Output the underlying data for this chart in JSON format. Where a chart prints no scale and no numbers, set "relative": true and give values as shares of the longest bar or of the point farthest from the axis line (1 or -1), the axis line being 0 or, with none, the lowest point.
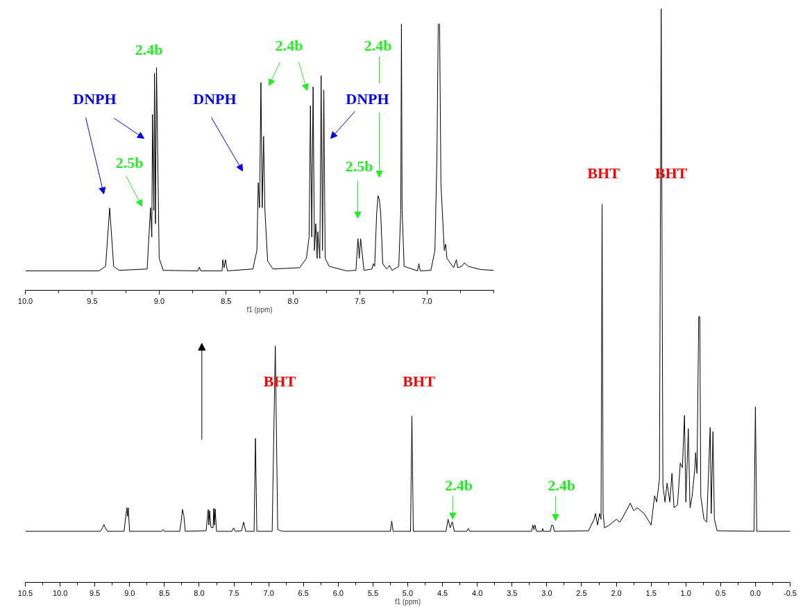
{
  "chart_data": [
    {
      "type": "line",
      "relative": true,
      "tick_labels": "x",
      "xlabel": "f1 (ppm)",
      "xlim": [
        10.0,
        6.5
      ],
      "xticks": [
        {
          "value": 10.0,
          "label": "10.0"
        },
        {
          "value": 9.75,
          "label": null
        },
        9.5,
        {
          "value": 9.25,
          "label": null
        },
        {
          "value": 9.0,
          "label": "9.0"
        },
        {
          "value": 8.75,
          "label": null
        },
        8.5,
        {
          "value": 8.25,
          "label": null
        },
        {
          "value": 8.0,
          "label": "8.0"
        },
        {
          "value": 7.75,
          "label": null
        },
        7.5,
        {
          "value": 7.25,
          "label": null
        },
        {
          "value": 7.0,
          "label": "7.0"
        },
        {
          "value": 6.75,
          "label": null
        },
        {
          "value": 6.5,
          "label": null
        }
      ],
      "series": [
        {
          "color": "#000000",
          "x": [
            10.0,
            9.45,
            9.4,
            9.37,
            9.34,
            9.3,
            9.09,
            9.065,
            9.055,
            9.05,
            9.04,
            9.035,
            9.028,
            9.02,
            9.0,
            8.97,
            8.71,
            8.7,
            8.69,
            8.53,
            8.525,
            8.515,
            8.505,
            8.49,
            8.3,
            8.27,
            8.26,
            8.25,
            8.24,
            8.23,
            8.22,
            8.21,
            8.19,
            8.15,
            7.95,
            7.9,
            7.88,
            7.87,
            7.86,
            7.85,
            7.84,
            7.83,
            7.82,
            7.815,
            7.8,
            7.79,
            7.78,
            7.77,
            7.76,
            7.73,
            7.6,
            7.53,
            7.515,
            7.505,
            7.495,
            7.47,
            7.41,
            7.4,
            7.39,
            7.375,
            7.365,
            7.355,
            7.345,
            7.33,
            7.3,
            7.28,
            7.26,
            7.21,
            7.195,
            7.19,
            7.185,
            7.17,
            7.07,
            7.06,
            7.05,
            6.97,
            6.94,
            6.925,
            6.915,
            6.905,
            6.895,
            6.87,
            6.86,
            6.85,
            6.8,
            6.78,
            6.77,
            6.74,
            6.72,
            6.69,
            6.6,
            6.5
          ],
          "values": [
            0.073,
            0.073,
            0.09,
            0.309,
            0.09,
            0.075,
            0.08,
            0.31,
            0.2,
            0.66,
            0.3,
            0.815,
            0.25,
            0.836,
            0.12,
            0.075,
            0.073,
            0.087,
            0.073,
            0.073,
            0.115,
            0.085,
            0.115,
            0.073,
            0.08,
            0.15,
            0.404,
            0.31,
            0.78,
            0.31,
            0.578,
            0.3,
            0.11,
            0.08,
            0.085,
            0.12,
            0.2,
            0.693,
            0.2,
            0.764,
            0.15,
            0.25,
            0.12,
            0.22,
            0.12,
            0.806,
            0.15,
            0.752,
            0.12,
            0.09,
            0.073,
            0.075,
            0.194,
            0.12,
            0.194,
            0.075,
            0.08,
            0.1,
            0.09,
            0.29,
            0.355,
            0.34,
            0.29,
            0.1,
            0.08,
            0.093,
            0.075,
            0.09,
            0.3,
            1.0,
            0.3,
            0.09,
            0.073,
            0.1,
            0.073,
            0.075,
            0.15,
            0.5,
            1.0,
            1.0,
            0.4,
            0.15,
            0.173,
            0.12,
            0.085,
            0.115,
            0.085,
            0.09,
            0.103,
            0.09,
            0.078,
            0.075
          ]
        }
      ],
      "annotations": [
        "DNPH",
        "2.4b",
        "2.5b",
        "DNPH",
        "2.4b",
        "DNPH",
        "2.4b",
        "2.5b"
      ]
    },
    {
      "type": "line",
      "relative": true,
      "tick_labels": "x",
      "xlabel": "f1 (ppm)",
      "xlim": [
        10.5,
        -0.5
      ],
      "xticks": [
        10.5,
        {
          "value": 10.25,
          "label": null
        },
        {
          "value": 10.0,
          "label": "10.0"
        },
        {
          "value": 9.75,
          "label": null
        },
        9.5,
        {
          "value": 9.25,
          "label": null
        },
        {
          "value": 9.0,
          "label": "9.0"
        },
        {
          "value": 8.75,
          "label": null
        },
        8.5,
        {
          "value": 8.25,
          "label": null
        },
        {
          "value": 8.0,
          "label": "8.0"
        },
        {
          "value": 7.75,
          "label": null
        },
        7.5,
        {
          "value": 7.25,
          "label": null
        },
        {
          "value": 7.0,
          "label": "7.0"
        },
        {
          "value": 6.75,
          "label": null
        },
        6.5,
        {
          "value": 6.25,
          "label": null
        },
        {
          "value": 6.0,
          "label": "6.0"
        },
        {
          "value": 5.75,
          "label": null
        },
        5.5,
        {
          "value": 5.25,
          "label": null
        },
        {
          "value": 5.0,
          "label": "5.0"
        },
        {
          "value": 4.75,
          "label": null
        },
        4.5,
        {
          "value": 4.25,
          "label": null
        },
        {
          "value": 4.0,
          "label": "4.0"
        },
        {
          "value": 3.75,
          "label": null
        },
        3.5,
        {
          "value": 3.25,
          "label": null
        },
        {
          "value": 3.0,
          "label": "3.0"
        },
        {
          "value": 2.75,
          "label": null
        },
        2.5,
        {
          "value": 2.25,
          "label": null
        },
        {
          "value": 2.0,
          "label": "2.0"
        },
        {
          "value": 1.75,
          "label": null
        },
        1.5,
        {
          "value": 1.25,
          "label": null
        },
        {
          "value": 1.0,
          "label": "1.0"
        },
        {
          "value": 0.75,
          "label": null
        },
        0.5,
        {
          "value": 0.25,
          "label": null
        },
        {
          "value": 0.0,
          "label": "0.0"
        },
        {
          "value": -0.25,
          "label": null
        },
        -0.5
      ],
      "series": [
        {
          "color": "#000000",
          "x": [
            10.5,
            9.42,
            9.39,
            9.37,
            9.35,
            9.32,
            9.08,
            9.065,
            9.05,
            9.04,
            9.03,
            9.02,
            9.0,
            8.54,
            8.52,
            8.5,
            8.28,
            8.26,
            8.24,
            8.22,
            8.2,
            7.9,
            7.87,
            7.86,
            7.85,
            7.83,
            7.8,
            7.79,
            7.78,
            7.77,
            7.75,
            7.53,
            7.505,
            7.48,
            7.39,
            7.36,
            7.33,
            7.21,
            7.19,
            7.17,
            6.95,
            6.905,
            6.87,
            6.85,
            6.8,
            5.25,
            5.23,
            5.21,
            4.96,
            4.94,
            4.92,
            4.45,
            4.42,
            4.39,
            4.36,
            4.33,
            4.15,
            4.13,
            4.11,
            3.22,
            3.2,
            3.185,
            3.17,
            3.15,
            3.07,
            3.06,
            3.05,
            2.95,
            2.93,
            2.91,
            2.89,
            2.4,
            2.32,
            2.3,
            2.27,
            2.24,
            2.22,
            2.205,
            2.19,
            2.17,
            2.1,
            2.0,
            1.95,
            1.9,
            1.8,
            1.75,
            1.7,
            1.6,
            1.55,
            1.5,
            1.47,
            1.45,
            1.42,
            1.38,
            1.355,
            1.33,
            1.3,
            1.27,
            1.23,
            1.2,
            1.17,
            1.12,
            1.08,
            1.05,
            1.02,
            1.0,
            0.965,
            0.94,
            0.91,
            0.87,
            0.86,
            0.84,
            0.815,
            0.8,
            0.785,
            0.74,
            0.7,
            0.65,
            0.635,
            0.61,
            0.59,
            0.55,
            0.02,
            0.0,
            -0.02,
            -0.5
          ],
          "values": [
            0.089,
            0.089,
            0.095,
            0.101,
            0.095,
            0.089,
            0.089,
            0.105,
            0.12,
            0.13,
            0.115,
            0.13,
            0.089,
            0.089,
            0.092,
            0.089,
            0.089,
            0.105,
            0.127,
            0.116,
            0.089,
            0.09,
            0.127,
            0.1,
            0.125,
            0.096,
            0.095,
            0.129,
            0.1,
            0.128,
            0.089,
            0.089,
            0.095,
            0.089,
            0.09,
            0.105,
            0.089,
            0.089,
            0.251,
            0.089,
            0.089,
            0.412,
            0.092,
            0.091,
            0.089,
            0.089,
            0.107,
            0.089,
            0.089,
            0.29,
            0.089,
            0.089,
            0.11,
            0.095,
            0.106,
            0.089,
            0.089,
            0.094,
            0.089,
            0.089,
            0.1,
            0.092,
            0.1,
            0.089,
            0.089,
            0.094,
            0.089,
            0.089,
            0.1,
            0.099,
            0.089,
            0.09,
            0.11,
            0.12,
            0.1,
            0.12,
            0.11,
            0.659,
            0.12,
            0.095,
            0.1,
            0.11,
            0.105,
            0.115,
            0.138,
            0.125,
            0.13,
            0.12,
            0.11,
            0.1,
            0.13,
            0.151,
            0.14,
            0.18,
            1.0,
            0.17,
            0.14,
            0.173,
            0.14,
            0.19,
            0.13,
            0.135,
            0.208,
            0.2,
            0.291,
            0.14,
            0.268,
            0.13,
            0.15,
            0.2,
            0.226,
            0.19,
            0.463,
            0.463,
            0.15,
            0.11,
            0.105,
            0.27,
            0.12,
            0.263,
            0.11,
            0.09,
            0.089,
            0.306,
            0.089,
            0.089
          ]
        }
      ],
      "annotations": [
        "BHT",
        "BHT",
        "BHT",
        "BHT",
        "2.4b",
        "2.4b"
      ]
    }
  ]
}
